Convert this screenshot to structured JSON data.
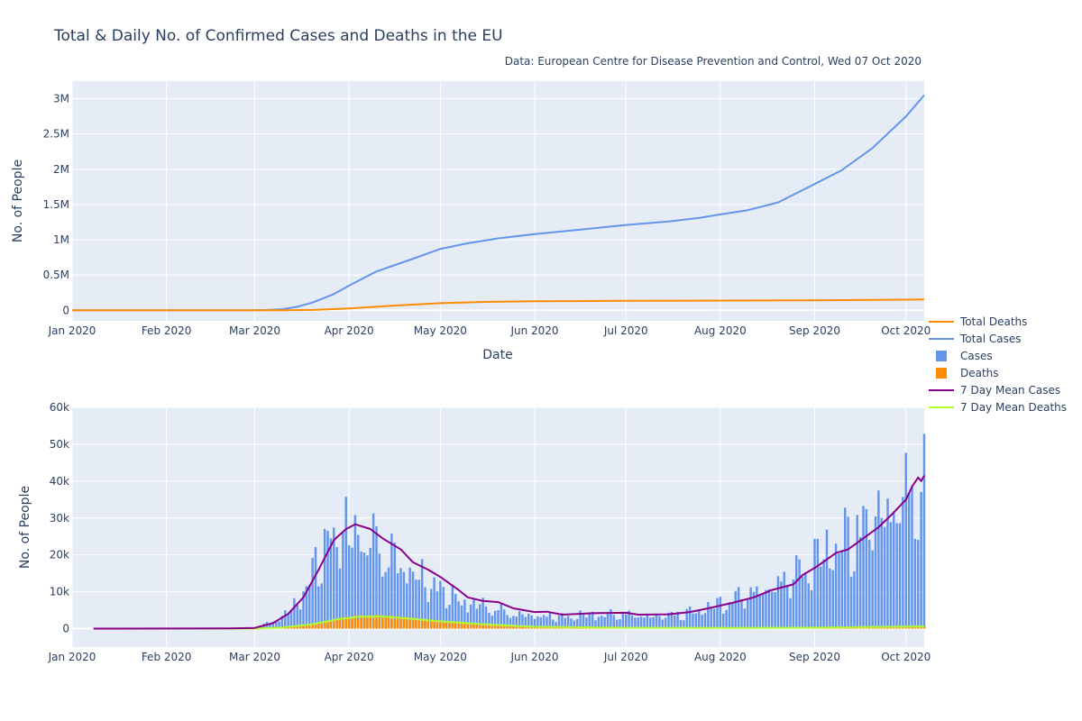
{
  "chart_data": {
    "type": "line",
    "title": "Total & Daily No. of Confirmed Cases and Deaths in the EU",
    "subtitle": "Data: European Centre for Disease Prevention and Control, Wed 07 Oct 2020",
    "legend_position": "right",
    "legend": [
      "Total Deaths",
      "Total Cases",
      "Cases",
      "Deaths",
      "7 Day Mean Cases",
      "7 Day Mean Deaths"
    ],
    "colors": {
      "total_deaths": "#ff8c00",
      "total_cases": "#6495ed",
      "cases": "#6495ed",
      "deaths": "#ff8c00",
      "mean_cases": "#8b008b",
      "mean_deaths": "#adff2f",
      "plot_bg": "#e5ecf6",
      "grid": "#ffffff"
    },
    "x_range": [
      "2020-01-01",
      "2020-10-07"
    ],
    "x_ticks": [
      {
        "date": "2020-01-01",
        "label": "Jan 2020"
      },
      {
        "date": "2020-02-01",
        "label": "Feb 2020"
      },
      {
        "date": "2020-03-01",
        "label": "Mar 2020"
      },
      {
        "date": "2020-04-01",
        "label": "Apr 2020"
      },
      {
        "date": "2020-05-01",
        "label": "May 2020"
      },
      {
        "date": "2020-06-01",
        "label": "Jun 2020"
      },
      {
        "date": "2020-07-01",
        "label": "Jul 2020"
      },
      {
        "date": "2020-08-01",
        "label": "Aug 2020"
      },
      {
        "date": "2020-09-01",
        "label": "Sep 2020"
      },
      {
        "date": "2020-10-01",
        "label": "Oct 2020"
      }
    ],
    "top": {
      "xlabel": "Date",
      "ylabel": "No. of People",
      "ylim": [
        -150000,
        3250000
      ],
      "y_ticks": [
        {
          "value": 0,
          "label": "0"
        },
        {
          "value": 500000,
          "label": "0.5M"
        },
        {
          "value": 1000000,
          "label": "1M"
        },
        {
          "value": 1500000,
          "label": "1.5M"
        },
        {
          "value": 2000000,
          "label": "2M"
        },
        {
          "value": 2500000,
          "label": "2.5M"
        },
        {
          "value": 3000000,
          "label": "3M"
        }
      ],
      "series": [
        {
          "name": "Total Cases",
          "points": [
            [
              "2020-01-01",
              0
            ],
            [
              "2020-02-28",
              1000
            ],
            [
              "2020-03-05",
              4000
            ],
            [
              "2020-03-10",
              15000
            ],
            [
              "2020-03-15",
              50000
            ],
            [
              "2020-03-20",
              110000
            ],
            [
              "2020-03-27",
              230000
            ],
            [
              "2020-04-01",
              350000
            ],
            [
              "2020-04-10",
              550000
            ],
            [
              "2020-04-20",
              700000
            ],
            [
              "2020-05-01",
              870000
            ],
            [
              "2020-05-10",
              950000
            ],
            [
              "2020-05-20",
              1020000
            ],
            [
              "2020-06-01",
              1080000
            ],
            [
              "2020-06-15",
              1140000
            ],
            [
              "2020-07-01",
              1210000
            ],
            [
              "2020-07-15",
              1260000
            ],
            [
              "2020-07-25",
              1310000
            ],
            [
              "2020-08-01",
              1360000
            ],
            [
              "2020-08-10",
              1420000
            ],
            [
              "2020-08-20",
              1530000
            ],
            [
              "2020-09-01",
              1790000
            ],
            [
              "2020-09-10",
              1990000
            ],
            [
              "2020-09-20",
              2300000
            ],
            [
              "2020-10-01",
              2750000
            ],
            [
              "2020-10-07",
              3050000
            ]
          ]
        },
        {
          "name": "Total Deaths",
          "points": [
            [
              "2020-01-01",
              0
            ],
            [
              "2020-03-10",
              1000
            ],
            [
              "2020-03-20",
              5000
            ],
            [
              "2020-04-01",
              25000
            ],
            [
              "2020-04-15",
              65000
            ],
            [
              "2020-05-01",
              100000
            ],
            [
              "2020-05-15",
              118000
            ],
            [
              "2020-06-01",
              128000
            ],
            [
              "2020-07-01",
              134000
            ],
            [
              "2020-08-01",
              137000
            ],
            [
              "2020-09-01",
              141000
            ],
            [
              "2020-10-07",
              153000
            ]
          ]
        }
      ]
    },
    "bottom": {
      "xlabel": "",
      "ylabel": "No. of People",
      "ylim": [
        -5000,
        60000
      ],
      "y_ticks": [
        {
          "value": 0,
          "label": "0"
        },
        {
          "value": 10000,
          "label": "10k"
        },
        {
          "value": 20000,
          "label": "20k"
        },
        {
          "value": 30000,
          "label": "30k"
        },
        {
          "value": 40000,
          "label": "40k"
        },
        {
          "value": 50000,
          "label": "50k"
        },
        {
          "value": 60000,
          "label": "60k"
        }
      ],
      "daily_cases_anchors": [
        [
          "2020-02-24",
          100
        ],
        [
          "2020-03-01",
          400
        ],
        [
          "2020-03-05",
          1500
        ],
        [
          "2020-03-10",
          3500
        ],
        [
          "2020-03-15",
          8000
        ],
        [
          "2020-03-20",
          17000
        ],
        [
          "2020-03-25",
          26000
        ],
        [
          "2020-03-30",
          31000
        ],
        [
          "2020-04-03",
          30000
        ],
        [
          "2020-04-08",
          26000
        ],
        [
          "2020-04-12",
          25000
        ],
        [
          "2020-04-17",
          20000
        ],
        [
          "2020-04-22",
          17000
        ],
        [
          "2020-04-27",
          14000
        ],
        [
          "2020-05-01",
          12000
        ],
        [
          "2020-05-05",
          9500
        ],
        [
          "2020-05-10",
          8000
        ],
        [
          "2020-05-15",
          7000
        ],
        [
          "2020-05-20",
          5500
        ],
        [
          "2020-05-25",
          4500
        ],
        [
          "2020-06-01",
          4000
        ],
        [
          "2020-06-10",
          3500
        ],
        [
          "2020-06-20",
          4200
        ],
        [
          "2020-07-01",
          4200
        ],
        [
          "2020-07-10",
          3800
        ],
        [
          "2020-07-20",
          4500
        ],
        [
          "2020-07-25",
          5500
        ],
        [
          "2020-08-01",
          7500
        ],
        [
          "2020-08-10",
          10500
        ],
        [
          "2020-08-20",
          14000
        ],
        [
          "2020-08-27",
          17000
        ],
        [
          "2020-09-01",
          21000
        ],
        [
          "2020-09-10",
          26000
        ],
        [
          "2020-09-15",
          29000
        ],
        [
          "2020-09-22",
          36000
        ],
        [
          "2020-10-01",
          40000
        ],
        [
          "2020-10-07",
          42000
        ]
      ],
      "daily_deaths_anchors": [
        [
          "2020-03-01",
          10
        ],
        [
          "2020-03-10",
          200
        ],
        [
          "2020-03-20",
          1200
        ],
        [
          "2020-03-28",
          2500
        ],
        [
          "2020-04-04",
          3300
        ],
        [
          "2020-04-12",
          3300
        ],
        [
          "2020-04-20",
          2800
        ],
        [
          "2020-05-01",
          2000
        ],
        [
          "2020-05-15",
          1200
        ],
        [
          "2020-06-01",
          500
        ],
        [
          "2020-07-01",
          250
        ],
        [
          "2020-08-01",
          200
        ],
        [
          "2020-09-01",
          280
        ],
        [
          "2020-10-07",
          600
        ]
      ],
      "mean_cases_points": [
        [
          "2020-01-08",
          0
        ],
        [
          "2020-02-20",
          50
        ],
        [
          "2020-03-01",
          200
        ],
        [
          "2020-03-07",
          1500
        ],
        [
          "2020-03-12",
          4000
        ],
        [
          "2020-03-17",
          8500
        ],
        [
          "2020-03-22",
          16000
        ],
        [
          "2020-03-27",
          24000
        ],
        [
          "2020-03-31",
          27000
        ],
        [
          "2020-04-03",
          28300
        ],
        [
          "2020-04-08",
          27000
        ],
        [
          "2020-04-12",
          24500
        ],
        [
          "2020-04-18",
          21500
        ],
        [
          "2020-04-22",
          18000
        ],
        [
          "2020-04-27",
          16000
        ],
        [
          "2020-05-01",
          14000
        ],
        [
          "2020-05-07",
          10500
        ],
        [
          "2020-05-10",
          8500
        ],
        [
          "2020-05-15",
          7500
        ],
        [
          "2020-05-20",
          7200
        ],
        [
          "2020-05-25",
          5500
        ],
        [
          "2020-06-01",
          4500
        ],
        [
          "2020-06-05",
          4600
        ],
        [
          "2020-06-10",
          3800
        ],
        [
          "2020-06-20",
          4200
        ],
        [
          "2020-07-01",
          4300
        ],
        [
          "2020-07-05",
          3800
        ],
        [
          "2020-07-15",
          3900
        ],
        [
          "2020-07-22",
          4500
        ],
        [
          "2020-07-28",
          5500
        ],
        [
          "2020-08-05",
          7000
        ],
        [
          "2020-08-12",
          8500
        ],
        [
          "2020-08-18",
          10500
        ],
        [
          "2020-08-25",
          12000
        ],
        [
          "2020-08-28",
          14500
        ],
        [
          "2020-09-02",
          17000
        ],
        [
          "2020-09-08",
          20500
        ],
        [
          "2020-09-12",
          21500
        ],
        [
          "2020-09-17",
          24500
        ],
        [
          "2020-09-22",
          27500
        ],
        [
          "2020-09-27",
          31500
        ],
        [
          "2020-10-01",
          35000
        ],
        [
          "2020-10-03",
          38500
        ],
        [
          "2020-10-05",
          41000
        ],
        [
          "2020-10-06",
          40000
        ],
        [
          "2020-10-07",
          41500
        ]
      ],
      "mean_deaths_points": [
        [
          "2020-01-08",
          0
        ],
        [
          "2020-03-01",
          20
        ],
        [
          "2020-03-10",
          300
        ],
        [
          "2020-03-20",
          1200
        ],
        [
          "2020-03-28",
          2500
        ],
        [
          "2020-04-04",
          3200
        ],
        [
          "2020-04-12",
          3300
        ],
        [
          "2020-04-20",
          2800
        ],
        [
          "2020-05-01",
          2000
        ],
        [
          "2020-05-15",
          1200
        ],
        [
          "2020-06-01",
          500
        ],
        [
          "2020-07-01",
          250
        ],
        [
          "2020-08-01",
          200
        ],
        [
          "2020-09-01",
          280
        ],
        [
          "2020-10-07",
          600
        ]
      ]
    }
  }
}
